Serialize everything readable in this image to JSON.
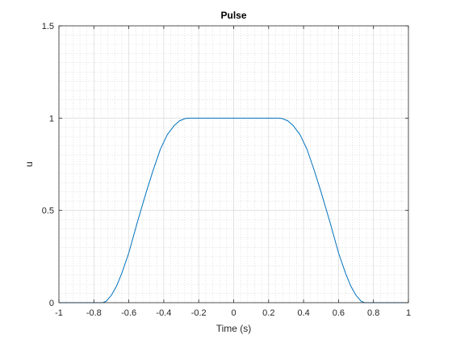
{
  "chart_data": {
    "type": "line",
    "title": "Pulse",
    "xlabel": "Time (s)",
    "ylabel": "u",
    "xlim": [
      -1,
      1
    ],
    "ylim": [
      0,
      1.5
    ],
    "xticks": [
      -1,
      -0.8,
      -0.6,
      -0.4,
      -0.2,
      0,
      0.2,
      0.4,
      0.6,
      0.8,
      1
    ],
    "xtick_labels": [
      "-1",
      "-0.8",
      "-0.6",
      "-0.4",
      "-0.2",
      "0",
      "0.2",
      "0.4",
      "0.6",
      "0.8",
      "1"
    ],
    "yticks": [
      0,
      0.5,
      1,
      1.5
    ],
    "ytick_labels": [
      "0",
      "0.5",
      "1",
      "1.5"
    ],
    "grid": true,
    "minor_grid": true,
    "series": [
      {
        "color": "#0072bd",
        "x": [
          -1,
          -0.75,
          -0.73,
          -0.7,
          -0.67,
          -0.64,
          -0.6,
          -0.55,
          -0.5,
          -0.46,
          -0.42,
          -0.38,
          -0.34,
          -0.31,
          -0.28,
          -0.26,
          -0.25,
          0,
          0.25,
          0.26,
          0.28,
          0.31,
          0.34,
          0.38,
          0.42,
          0.46,
          0.5,
          0.55,
          0.6,
          0.64,
          0.67,
          0.7,
          0.73,
          0.75,
          1
        ],
        "y": [
          0,
          0,
          0.007,
          0.04,
          0.09,
          0.16,
          0.27,
          0.44,
          0.6,
          0.72,
          0.83,
          0.91,
          0.96,
          0.985,
          0.997,
          1,
          1,
          1,
          1,
          1,
          0.997,
          0.985,
          0.96,
          0.91,
          0.83,
          0.72,
          0.6,
          0.44,
          0.27,
          0.16,
          0.09,
          0.04,
          0.007,
          0,
          0
        ]
      }
    ]
  }
}
